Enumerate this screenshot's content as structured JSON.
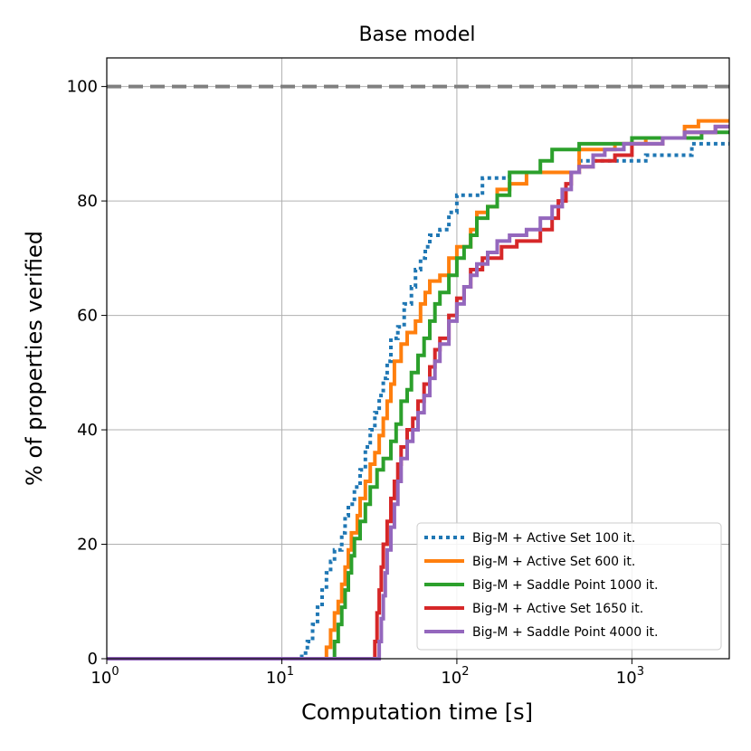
{
  "chart_data": {
    "type": "line",
    "title": "Base model",
    "xlabel": "Computation time [s]",
    "ylabel": "% of properties verified",
    "xscale": "log",
    "xlim": [
      1,
      3600
    ],
    "ylim": [
      0,
      105
    ],
    "x_ticks": [
      {
        "value": 1,
        "base": "10",
        "exp": "0"
      },
      {
        "value": 10,
        "base": "10",
        "exp": "1"
      },
      {
        "value": 100,
        "base": "10",
        "exp": "2"
      },
      {
        "value": 1000,
        "base": "10",
        "exp": "3"
      }
    ],
    "y_ticks": [
      0,
      20,
      40,
      60,
      80,
      100
    ],
    "grid": true,
    "legend_position": "bottom-right",
    "reference_line": {
      "y": 100,
      "style": "dashed",
      "color": "#808080"
    },
    "series": [
      {
        "name": "Big-M + Active Set 100 it.",
        "color": "#1f77b4",
        "style": "dotted",
        "points": [
          [
            1,
            0
          ],
          [
            12.5,
            0
          ],
          [
            13,
            1
          ],
          [
            14,
            3
          ],
          [
            15,
            6
          ],
          [
            16,
            9
          ],
          [
            17,
            12
          ],
          [
            18,
            15
          ],
          [
            19,
            17
          ],
          [
            20,
            19
          ],
          [
            22,
            22
          ],
          [
            23,
            25
          ],
          [
            24,
            27
          ],
          [
            26,
            30
          ],
          [
            28,
            33
          ],
          [
            30,
            37
          ],
          [
            32,
            40
          ],
          [
            34,
            43
          ],
          [
            36,
            46
          ],
          [
            38,
            49
          ],
          [
            40,
            52
          ],
          [
            42,
            56
          ],
          [
            46,
            58
          ],
          [
            50,
            62
          ],
          [
            55,
            65
          ],
          [
            58,
            68
          ],
          [
            62,
            70
          ],
          [
            66,
            72
          ],
          [
            70,
            74
          ],
          [
            80,
            75
          ],
          [
            90,
            78
          ],
          [
            100,
            81
          ],
          [
            120,
            81
          ],
          [
            140,
            84
          ],
          [
            170,
            84
          ],
          [
            200,
            85
          ],
          [
            400,
            85
          ],
          [
            500,
            87
          ],
          [
            1000,
            87
          ],
          [
            1200,
            88
          ],
          [
            2000,
            88
          ],
          [
            2200,
            90
          ],
          [
            3600,
            90
          ]
        ]
      },
      {
        "name": "Big-M + Active Set 600 it.",
        "color": "#ff7f0e",
        "style": "solid",
        "points": [
          [
            1,
            0
          ],
          [
            17.5,
            0
          ],
          [
            18,
            2
          ],
          [
            19,
            5
          ],
          [
            20,
            8
          ],
          [
            21,
            10
          ],
          [
            22,
            13
          ],
          [
            23,
            16
          ],
          [
            24,
            19
          ],
          [
            25,
            22
          ],
          [
            27,
            25
          ],
          [
            28,
            28
          ],
          [
            30,
            31
          ],
          [
            32,
            34
          ],
          [
            34,
            36
          ],
          [
            36,
            39
          ],
          [
            38,
            42
          ],
          [
            40,
            45
          ],
          [
            42,
            48
          ],
          [
            44,
            52
          ],
          [
            48,
            55
          ],
          [
            52,
            57
          ],
          [
            58,
            59
          ],
          [
            62,
            62
          ],
          [
            66,
            64
          ],
          [
            70,
            66
          ],
          [
            80,
            67
          ],
          [
            90,
            70
          ],
          [
            100,
            72
          ],
          [
            120,
            75
          ],
          [
            130,
            78
          ],
          [
            150,
            79
          ],
          [
            170,
            82
          ],
          [
            200,
            83
          ],
          [
            250,
            85
          ],
          [
            400,
            85
          ],
          [
            500,
            89
          ],
          [
            800,
            90
          ],
          [
            1200,
            91
          ],
          [
            2000,
            93
          ],
          [
            2400,
            94
          ],
          [
            3600,
            94
          ]
        ]
      },
      {
        "name": "Big-M + Saddle Point 1000 it.",
        "color": "#2ca02c",
        "style": "solid",
        "points": [
          [
            1,
            0
          ],
          [
            19.5,
            0
          ],
          [
            20,
            3
          ],
          [
            21,
            6
          ],
          [
            22,
            9
          ],
          [
            23,
            12
          ],
          [
            24,
            15
          ],
          [
            25,
            18
          ],
          [
            26,
            21
          ],
          [
            28,
            24
          ],
          [
            30,
            27
          ],
          [
            32,
            30
          ],
          [
            35,
            33
          ],
          [
            38,
            35
          ],
          [
            42,
            38
          ],
          [
            45,
            41
          ],
          [
            48,
            45
          ],
          [
            52,
            47
          ],
          [
            55,
            50
          ],
          [
            60,
            53
          ],
          [
            65,
            56
          ],
          [
            70,
            59
          ],
          [
            75,
            62
          ],
          [
            80,
            64
          ],
          [
            90,
            67
          ],
          [
            100,
            70
          ],
          [
            110,
            72
          ],
          [
            120,
            74
          ],
          [
            130,
            77
          ],
          [
            150,
            79
          ],
          [
            170,
            81
          ],
          [
            200,
            85
          ],
          [
            250,
            85
          ],
          [
            300,
            87
          ],
          [
            350,
            89
          ],
          [
            500,
            90
          ],
          [
            900,
            90
          ],
          [
            1000,
            91
          ],
          [
            2000,
            91
          ],
          [
            2500,
            92
          ],
          [
            3600,
            92
          ]
        ]
      },
      {
        "name": "Big-M + Active Set 1650 it.",
        "color": "#d62728",
        "style": "solid",
        "points": [
          [
            1,
            0
          ],
          [
            33.5,
            0
          ],
          [
            34,
            3
          ],
          [
            35,
            8
          ],
          [
            36,
            12
          ],
          [
            37,
            16
          ],
          [
            38,
            20
          ],
          [
            40,
            24
          ],
          [
            42,
            28
          ],
          [
            44,
            31
          ],
          [
            46,
            34
          ],
          [
            48,
            37
          ],
          [
            52,
            40
          ],
          [
            56,
            42
          ],
          [
            60,
            45
          ],
          [
            65,
            48
          ],
          [
            70,
            51
          ],
          [
            75,
            54
          ],
          [
            80,
            56
          ],
          [
            90,
            60
          ],
          [
            100,
            63
          ],
          [
            110,
            65
          ],
          [
            120,
            68
          ],
          [
            140,
            70
          ],
          [
            180,
            72
          ],
          [
            220,
            73
          ],
          [
            300,
            75
          ],
          [
            350,
            77
          ],
          [
            380,
            80
          ],
          [
            420,
            83
          ],
          [
            450,
            85
          ],
          [
            500,
            86
          ],
          [
            600,
            87
          ],
          [
            800,
            88
          ],
          [
            1000,
            90
          ],
          [
            1500,
            91
          ],
          [
            2000,
            92
          ],
          [
            3000,
            93
          ],
          [
            3600,
            93
          ]
        ]
      },
      {
        "name": "Big-M + Saddle Point 4000 it.",
        "color": "#9467bd",
        "style": "solid",
        "points": [
          [
            1,
            0
          ],
          [
            35.5,
            0
          ],
          [
            36,
            3
          ],
          [
            37,
            7
          ],
          [
            38,
            11
          ],
          [
            39,
            15
          ],
          [
            40,
            19
          ],
          [
            42,
            23
          ],
          [
            44,
            27
          ],
          [
            46,
            31
          ],
          [
            48,
            35
          ],
          [
            52,
            38
          ],
          [
            56,
            40
          ],
          [
            60,
            43
          ],
          [
            65,
            46
          ],
          [
            70,
            49
          ],
          [
            75,
            52
          ],
          [
            80,
            55
          ],
          [
            90,
            59
          ],
          [
            100,
            62
          ],
          [
            110,
            65
          ],
          [
            120,
            67
          ],
          [
            130,
            69
          ],
          [
            150,
            71
          ],
          [
            170,
            73
          ],
          [
            200,
            74
          ],
          [
            250,
            75
          ],
          [
            300,
            77
          ],
          [
            350,
            79
          ],
          [
            400,
            82
          ],
          [
            450,
            85
          ],
          [
            500,
            86
          ],
          [
            600,
            88
          ],
          [
            700,
            89
          ],
          [
            900,
            90
          ],
          [
            1500,
            91
          ],
          [
            2000,
            92
          ],
          [
            3000,
            93
          ],
          [
            3600,
            93
          ]
        ]
      }
    ]
  }
}
